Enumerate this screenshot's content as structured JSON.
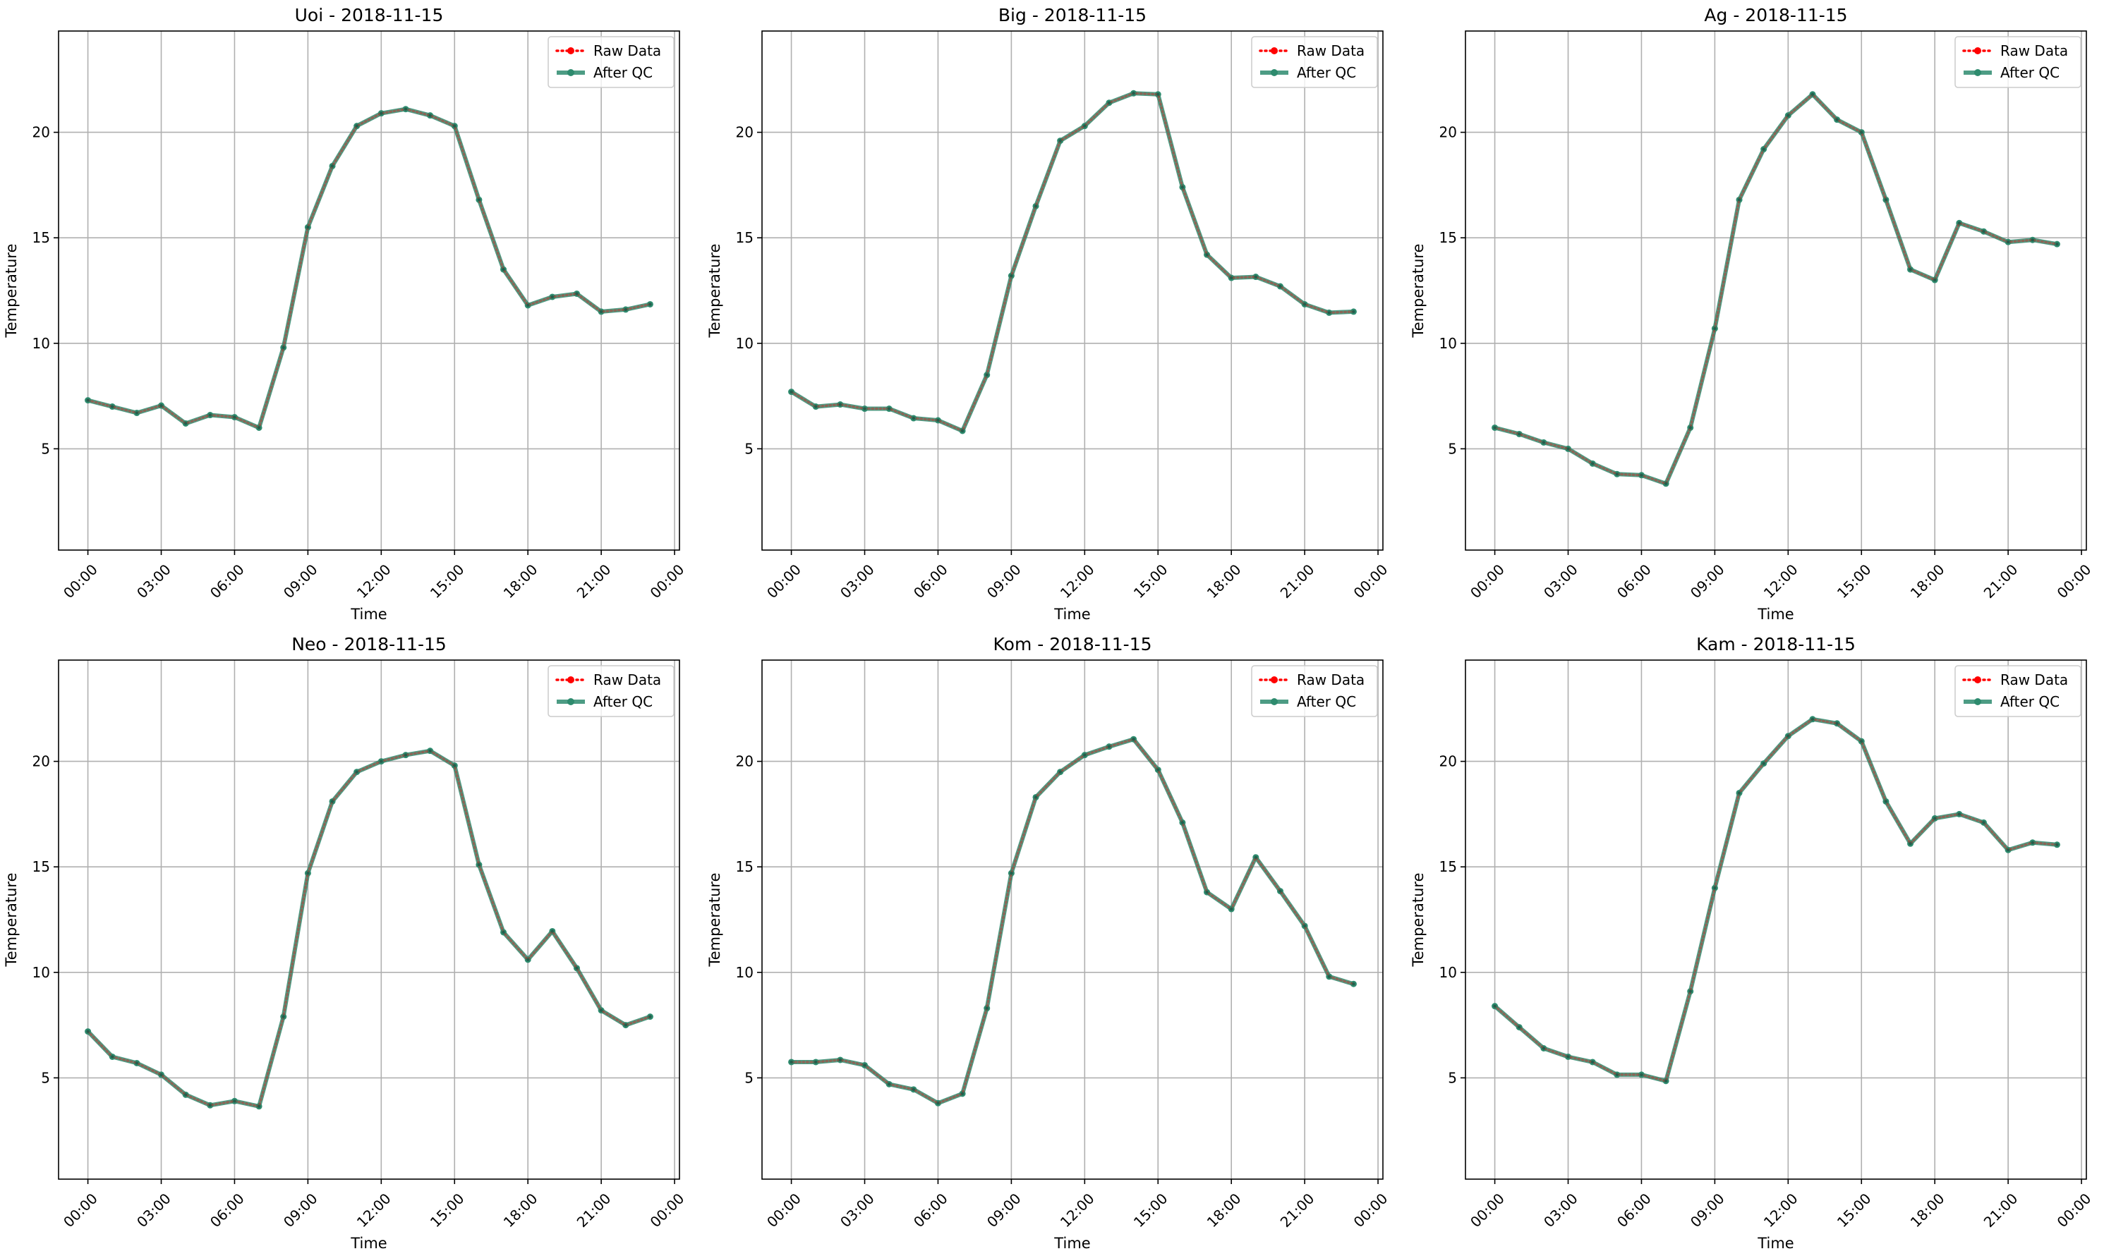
{
  "chart_data": [
    {
      "type": "line",
      "title": "Uoi - 2018-11-15",
      "xlabel": "Time",
      "ylabel": "Temperature",
      "xlim": [
        -1.2,
        24.2
      ],
      "ylim": [
        0.2,
        24.8
      ],
      "xticks": [
        0,
        3,
        6,
        9,
        12,
        15,
        18,
        21,
        24
      ],
      "xticklabels": [
        "00:00",
        "03:00",
        "06:00",
        "09:00",
        "12:00",
        "15:00",
        "18:00",
        "21:00",
        "00:00"
      ],
      "yticks": [
        5,
        10,
        15,
        20
      ],
      "grid": true,
      "legend": "top-right",
      "x": [
        0,
        1,
        2,
        3,
        4,
        5,
        6,
        7,
        8,
        9,
        10,
        11,
        12,
        13,
        14,
        15,
        16,
        17,
        18,
        19,
        20,
        21,
        22,
        23
      ],
      "series": [
        {
          "name": "Raw Data",
          "color": "#ff0000",
          "style": "dotted",
          "values": [
            7.3,
            7.0,
            6.7,
            7.05,
            6.2,
            6.6,
            6.5,
            6.0,
            9.8,
            15.5,
            18.4,
            20.3,
            20.9,
            21.1,
            20.8,
            20.3,
            16.8,
            13.5,
            11.8,
            12.2,
            12.35,
            11.5,
            11.6,
            11.85
          ]
        },
        {
          "name": "After QC",
          "color": "#2e8b6e",
          "style": "solid",
          "values": [
            7.3,
            7.0,
            6.7,
            7.05,
            6.2,
            6.6,
            6.5,
            6.0,
            9.8,
            15.5,
            18.4,
            20.3,
            20.9,
            21.1,
            20.8,
            20.3,
            16.8,
            13.5,
            11.8,
            12.2,
            12.35,
            11.5,
            11.6,
            11.85
          ]
        }
      ]
    },
    {
      "type": "line",
      "title": "Big - 2018-11-15",
      "xlabel": "Time",
      "ylabel": "Temperature",
      "xlim": [
        -1.2,
        24.2
      ],
      "ylim": [
        0.2,
        24.8
      ],
      "xticks": [
        0,
        3,
        6,
        9,
        12,
        15,
        18,
        21,
        24
      ],
      "xticklabels": [
        "00:00",
        "03:00",
        "06:00",
        "09:00",
        "12:00",
        "15:00",
        "18:00",
        "21:00",
        "00:00"
      ],
      "yticks": [
        5,
        10,
        15,
        20
      ],
      "grid": true,
      "legend": "top-right",
      "x": [
        0,
        1,
        2,
        3,
        4,
        5,
        6,
        7,
        8,
        9,
        10,
        11,
        12,
        13,
        14,
        15,
        16,
        17,
        18,
        19,
        20,
        21,
        22,
        23
      ],
      "series": [
        {
          "name": "Raw Data",
          "color": "#ff0000",
          "style": "dotted",
          "values": [
            7.7,
            7.0,
            7.1,
            6.9,
            6.9,
            6.45,
            6.35,
            5.85,
            8.5,
            13.2,
            16.5,
            19.6,
            20.3,
            21.4,
            21.85,
            21.8,
            17.4,
            14.2,
            13.1,
            13.15,
            12.7,
            11.85,
            11.45,
            11.5
          ]
        },
        {
          "name": "After QC",
          "color": "#2e8b6e",
          "style": "solid",
          "values": [
            7.7,
            7.0,
            7.1,
            6.9,
            6.9,
            6.45,
            6.35,
            5.85,
            8.5,
            13.2,
            16.5,
            19.6,
            20.3,
            21.4,
            21.85,
            21.8,
            17.4,
            14.2,
            13.1,
            13.15,
            12.7,
            11.85,
            11.45,
            11.5
          ]
        }
      ]
    },
    {
      "type": "line",
      "title": "Ag - 2018-11-15",
      "xlabel": "Time",
      "ylabel": "Temperature",
      "xlim": [
        -1.2,
        24.2
      ],
      "ylim": [
        0.2,
        24.8
      ],
      "xticks": [
        0,
        3,
        6,
        9,
        12,
        15,
        18,
        21,
        24
      ],
      "xticklabels": [
        "00:00",
        "03:00",
        "06:00",
        "09:00",
        "12:00",
        "15:00",
        "18:00",
        "21:00",
        "00:00"
      ],
      "yticks": [
        5,
        10,
        15,
        20
      ],
      "grid": true,
      "legend": "top-right",
      "x": [
        0,
        1,
        2,
        3,
        4,
        5,
        6,
        7,
        8,
        9,
        10,
        11,
        12,
        13,
        14,
        15,
        16,
        17,
        18,
        19,
        20,
        21,
        22,
        23
      ],
      "series": [
        {
          "name": "Raw Data",
          "color": "#ff0000",
          "style": "dotted",
          "values": [
            6.0,
            5.7,
            5.3,
            5.0,
            4.3,
            3.8,
            3.75,
            3.35,
            6.0,
            10.7,
            16.8,
            19.2,
            20.8,
            21.8,
            20.6,
            20.0,
            16.8,
            13.5,
            13.0,
            15.7,
            15.3,
            14.8,
            14.9,
            14.7
          ]
        },
        {
          "name": "After QC",
          "color": "#2e8b6e",
          "style": "solid",
          "values": [
            6.0,
            5.7,
            5.3,
            5.0,
            4.3,
            3.8,
            3.75,
            3.35,
            6.0,
            10.7,
            16.8,
            19.2,
            20.8,
            21.8,
            20.6,
            20.0,
            16.8,
            13.5,
            13.0,
            15.7,
            15.3,
            14.8,
            14.9,
            14.7
          ]
        }
      ]
    },
    {
      "type": "line",
      "title": "Neo - 2018-11-15",
      "xlabel": "Time",
      "ylabel": "Temperature",
      "xlim": [
        -1.2,
        24.2
      ],
      "ylim": [
        0.2,
        24.8
      ],
      "xticks": [
        0,
        3,
        6,
        9,
        12,
        15,
        18,
        21,
        24
      ],
      "xticklabels": [
        "00:00",
        "03:00",
        "06:00",
        "09:00",
        "12:00",
        "15:00",
        "18:00",
        "21:00",
        "00:00"
      ],
      "yticks": [
        5,
        10,
        15,
        20
      ],
      "grid": true,
      "legend": "top-right",
      "x": [
        0,
        1,
        2,
        3,
        4,
        5,
        6,
        7,
        8,
        9,
        10,
        11,
        12,
        13,
        14,
        15,
        16,
        17,
        18,
        19,
        20,
        21,
        22,
        23
      ],
      "series": [
        {
          "name": "Raw Data",
          "color": "#ff0000",
          "style": "dotted",
          "values": [
            7.2,
            6.0,
            5.7,
            5.15,
            4.2,
            3.7,
            3.9,
            3.65,
            7.9,
            14.7,
            18.1,
            19.5,
            20.0,
            20.3,
            20.5,
            19.8,
            15.1,
            11.9,
            10.6,
            11.95,
            10.2,
            8.2,
            7.5,
            7.9
          ]
        },
        {
          "name": "After QC",
          "color": "#2e8b6e",
          "style": "solid",
          "values": [
            7.2,
            6.0,
            5.7,
            5.15,
            4.2,
            3.7,
            3.9,
            3.65,
            7.9,
            14.7,
            18.1,
            19.5,
            20.0,
            20.3,
            20.5,
            19.8,
            15.1,
            11.9,
            10.6,
            11.95,
            10.2,
            8.2,
            7.5,
            7.9
          ]
        }
      ]
    },
    {
      "type": "line",
      "title": "Kom - 2018-11-15",
      "xlabel": "Time",
      "ylabel": "Temperature",
      "xlim": [
        -1.2,
        24.2
      ],
      "ylim": [
        0.2,
        24.8
      ],
      "xticks": [
        0,
        3,
        6,
        9,
        12,
        15,
        18,
        21,
        24
      ],
      "xticklabels": [
        "00:00",
        "03:00",
        "06:00",
        "09:00",
        "12:00",
        "15:00",
        "18:00",
        "21:00",
        "00:00"
      ],
      "yticks": [
        5,
        10,
        15,
        20
      ],
      "grid": true,
      "legend": "top-right",
      "x": [
        0,
        1,
        2,
        3,
        4,
        5,
        6,
        7,
        8,
        9,
        10,
        11,
        12,
        13,
        14,
        15,
        16,
        17,
        18,
        19,
        20,
        21,
        22,
        23
      ],
      "series": [
        {
          "name": "Raw Data",
          "color": "#ff0000",
          "style": "dotted",
          "values": [
            5.75,
            5.75,
            5.85,
            5.6,
            4.7,
            4.45,
            3.8,
            4.25,
            8.3,
            14.7,
            18.3,
            19.5,
            20.3,
            20.7,
            21.05,
            19.6,
            17.1,
            13.8,
            13.0,
            15.45,
            13.85,
            12.2,
            9.8,
            9.45
          ]
        },
        {
          "name": "After QC",
          "color": "#2e8b6e",
          "style": "solid",
          "values": [
            5.75,
            5.75,
            5.85,
            5.6,
            4.7,
            4.45,
            3.8,
            4.25,
            8.3,
            14.7,
            18.3,
            19.5,
            20.3,
            20.7,
            21.05,
            19.6,
            17.1,
            13.8,
            13.0,
            15.45,
            13.85,
            12.2,
            9.8,
            9.45
          ]
        }
      ]
    },
    {
      "type": "line",
      "title": "Kam - 2018-11-15",
      "xlabel": "Time",
      "ylabel": "Temperature",
      "xlim": [
        -1.2,
        24.2
      ],
      "ylim": [
        0.2,
        24.8
      ],
      "xticks": [
        0,
        3,
        6,
        9,
        12,
        15,
        18,
        21,
        24
      ],
      "xticklabels": [
        "00:00",
        "03:00",
        "06:00",
        "09:00",
        "12:00",
        "15:00",
        "18:00",
        "21:00",
        "00:00"
      ],
      "yticks": [
        5,
        10,
        15,
        20
      ],
      "grid": true,
      "legend": "top-right",
      "x": [
        0,
        1,
        2,
        3,
        4,
        5,
        6,
        7,
        8,
        9,
        10,
        11,
        12,
        13,
        14,
        15,
        16,
        17,
        18,
        19,
        20,
        21,
        22,
        23
      ],
      "series": [
        {
          "name": "Raw Data",
          "color": "#ff0000",
          "style": "dotted",
          "values": [
            8.4,
            7.4,
            6.4,
            6.0,
            5.75,
            5.15,
            5.15,
            4.85,
            9.1,
            14.0,
            18.5,
            19.9,
            21.2,
            22.0,
            21.8,
            20.95,
            18.1,
            16.1,
            17.3,
            17.5,
            17.1,
            15.8,
            16.15,
            16.05
          ]
        },
        {
          "name": "After QC",
          "color": "#2e8b6e",
          "style": "solid",
          "values": [
            8.4,
            7.4,
            6.4,
            6.0,
            5.75,
            5.15,
            5.15,
            4.85,
            9.1,
            14.0,
            18.5,
            19.9,
            21.2,
            22.0,
            21.8,
            20.95,
            18.1,
            16.1,
            17.3,
            17.5,
            17.1,
            15.8,
            16.15,
            16.05
          ]
        }
      ]
    }
  ]
}
